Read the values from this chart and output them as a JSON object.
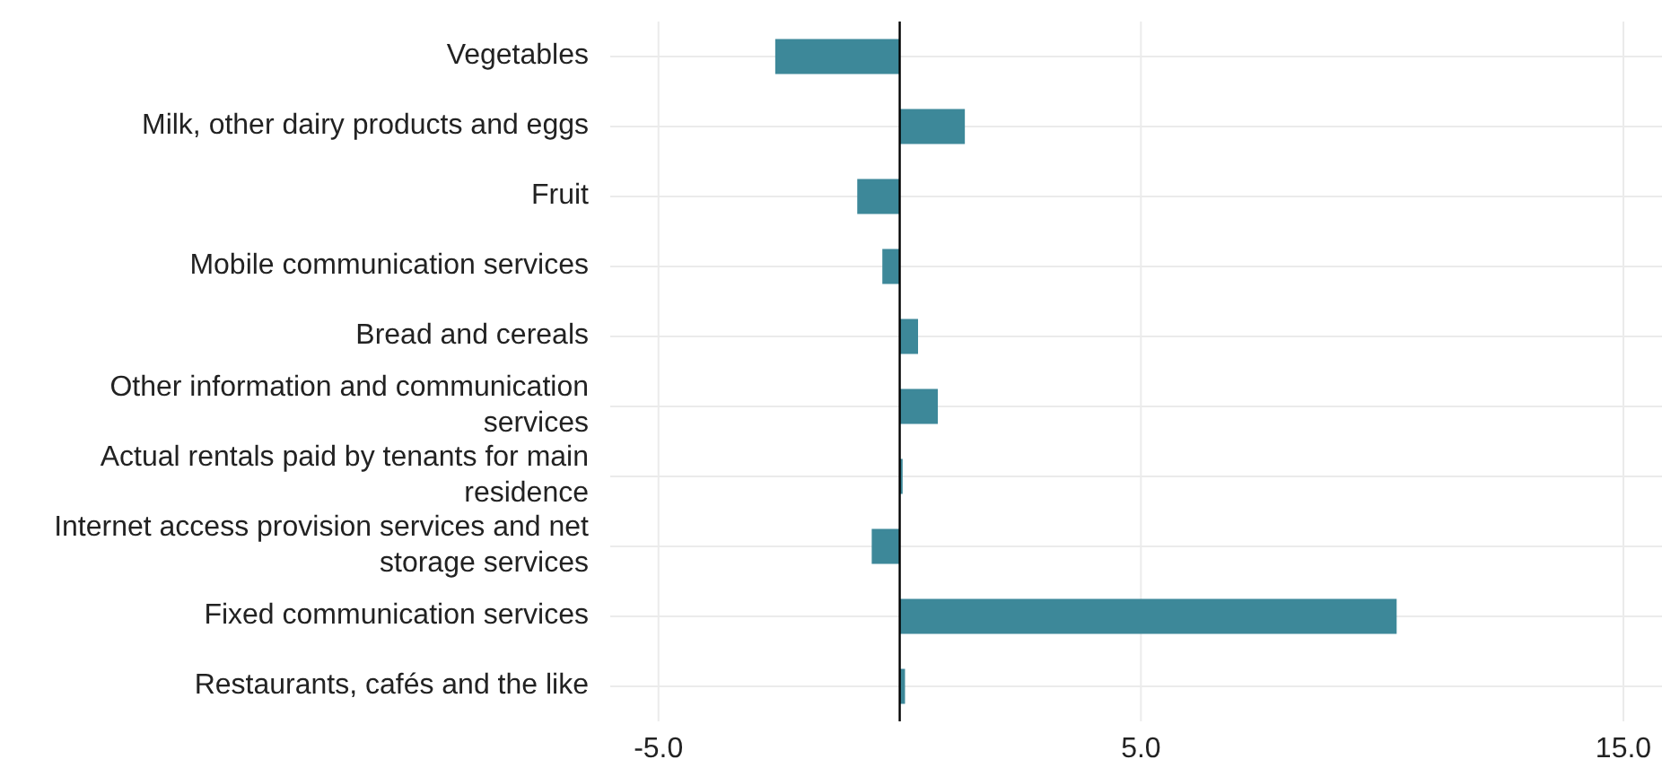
{
  "chart_data": {
    "type": "bar",
    "orientation": "horizontal",
    "categories": [
      "Vegetables",
      "Milk, other dairy products and eggs",
      "Fruit",
      "Mobile communication services",
      "Bread and cereals",
      "Other information and communication services",
      "Actual rentals paid by tenants for main residence",
      "Internet access provision services and net storage services",
      "Fixed communication services",
      "Restaurants, cafés and the like"
    ],
    "values": [
      -2.58,
      1.35,
      -0.88,
      -0.36,
      0.38,
      0.79,
      0.06,
      -0.58,
      10.3,
      0.11
    ],
    "color": "#3d8899",
    "xlim": [
      -6,
      15.8
    ],
    "xticks": [
      {
        "value": -5,
        "label": "-5.0"
      },
      {
        "value": 5,
        "label": "5.0"
      },
      {
        "value": 15,
        "label": "15.0"
      }
    ],
    "ref_lines": [
      {
        "axis": "x",
        "value": 0,
        "color": "#000000"
      }
    ],
    "grid": true
  }
}
